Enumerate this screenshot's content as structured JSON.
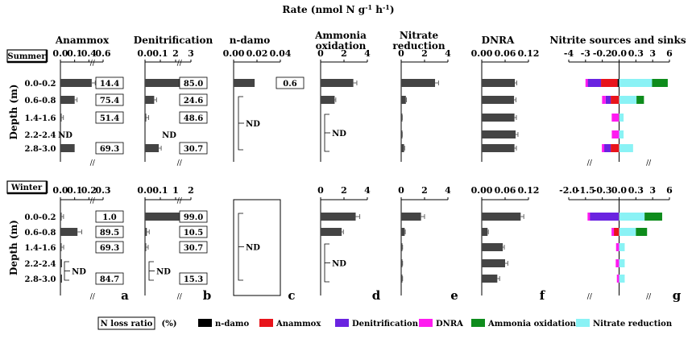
{
  "header": {
    "rate_title": "Rate (nmol N g",
    "rate_exp1": "-1",
    "rate_mid": " h",
    "rate_exp2": "-1",
    "rate_close": ")"
  },
  "seasons": [
    "Summer",
    "Winter"
  ],
  "depth_axis_label": "Depth (m)",
  "depths": [
    "0.0-0.2",
    "0.6-0.8",
    "1.4-1.6",
    "2.2-2.4",
    "2.8-3.0"
  ],
  "nd_label": "ND",
  "panel_letters": [
    "a",
    "b",
    "c",
    "d",
    "e",
    "f",
    "g"
  ],
  "legend": {
    "nloss_box": "N loss ratio",
    "nloss_unit": "(%)",
    "items": [
      {
        "label": "n-damo",
        "color": "#000000"
      },
      {
        "label": "Anammox",
        "color": "#e8141b"
      },
      {
        "label": "Denitrification",
        "color": "#6a23e0"
      },
      {
        "label": "DNRA",
        "color": "#ff1bf0"
      },
      {
        "label": "Ammonia oxidation",
        "color": "#0e8c1c"
      },
      {
        "label": "Nitrate reduction",
        "color": "#8af2f5"
      }
    ]
  },
  "chart_data": [
    {
      "type": "bar",
      "orientation": "horizontal",
      "panel": "a",
      "title": "Anammox",
      "ticks_summer": [
        "0.0",
        "0.1",
        "0.4",
        "0.6"
      ],
      "ticks_winter": [
        "0.0",
        "0.1",
        "0.2",
        "0.3"
      ],
      "series": [
        {
          "name": "Summer",
          "values": [
            0.44,
            0.1,
            0.004,
            null,
            0.1
          ],
          "errors": [
            0.05,
            0.01,
            0.002,
            null,
            0.0
          ],
          "nloss_ratio": [
            "14.4",
            "75.4",
            "51.4",
            null,
            "69.3"
          ]
        },
        {
          "name": "Winter",
          "values": [
            0.005,
            0.12,
            0.006,
            0.0,
            0.0
          ],
          "errors": [
            0.002,
            0.03,
            0.002,
            null,
            null
          ],
          "nloss_ratio": [
            "1.0",
            "89.5",
            "69.3",
            null,
            "84.7"
          ]
        }
      ],
      "nd": {
        "Summer": [
          "2.2-2.4"
        ],
        "Winter": [
          "2.2-2.4",
          "2.8-3.0"
        ]
      }
    },
    {
      "type": "bar",
      "orientation": "horizontal",
      "panel": "b",
      "title": "Denitrification",
      "ticks_summer": [
        "0.0",
        "0.1",
        "2",
        "3"
      ],
      "ticks_winter": [
        "0.0",
        "0.1",
        "1",
        "2"
      ],
      "series": [
        {
          "name": "Summer",
          "values": [
            2.5,
            0.06,
            0.008,
            null,
            0.09
          ],
          "errors": [
            0.0,
            0.005,
            0.002,
            null,
            0.01
          ],
          "nloss_ratio": [
            "85.0",
            "24.6",
            "48.6",
            null,
            "30.7"
          ]
        },
        {
          "name": "Winter",
          "values": [
            1.25,
            0.012,
            0.005,
            null,
            null
          ],
          "errors": [
            0.3,
            0.002,
            0.001,
            null,
            null
          ],
          "nloss_ratio": [
            "99.0",
            "10.5",
            "30.7",
            null,
            "15.3"
          ]
        }
      ],
      "nd": {
        "Summer": [
          "2.2-2.4"
        ],
        "Winter": [
          "2.2-2.4",
          "2.8-3.0"
        ]
      }
    },
    {
      "type": "bar",
      "orientation": "horizontal",
      "panel": "c",
      "title": "n-damo",
      "ticks_summer": [
        "0.00",
        "0.02",
        "0.04"
      ],
      "series": [
        {
          "name": "Summer",
          "values": [
            0.018,
            null,
            null,
            null,
            null
          ],
          "nloss_ratio": [
            "0.6",
            null,
            null,
            null,
            null
          ]
        },
        {
          "name": "Winter",
          "values": [
            null,
            null,
            null,
            null,
            null
          ]
        }
      ],
      "nd": {
        "Summer": [
          "0.6-0.8",
          "1.4-1.6",
          "2.2-2.4",
          "2.8-3.0"
        ],
        "Winter": [
          "0.0-0.2",
          "0.6-0.8",
          "1.4-1.6",
          "2.2-2.4",
          "2.8-3.0"
        ]
      }
    },
    {
      "type": "bar",
      "orientation": "horizontal",
      "panel": "d",
      "title": "Ammonia oxidation",
      "xlim": [
        0,
        4
      ],
      "ticks": [
        "0",
        "2",
        "4"
      ],
      "series": [
        {
          "name": "Summer",
          "values": [
            2.8,
            1.2,
            null,
            null,
            null
          ],
          "errors": [
            0.3,
            0.1,
            null,
            null,
            null
          ]
        },
        {
          "name": "Winter",
          "values": [
            3.0,
            1.8,
            null,
            null,
            null
          ],
          "errors": [
            0.35,
            0.15,
            null,
            null,
            null
          ]
        }
      ],
      "nd": {
        "Summer": [
          "1.4-1.6",
          "2.2-2.4",
          "2.8-3.0"
        ],
        "Winter": [
          "1.4-1.6",
          "2.2-2.4",
          "2.8-3.0"
        ]
      }
    },
    {
      "type": "bar",
      "orientation": "horizontal",
      "panel": "e",
      "title": "Nitrate reduction",
      "xlim": [
        0,
        4
      ],
      "ticks": [
        "0",
        "2",
        "4"
      ],
      "series": [
        {
          "name": "Summer",
          "values": [
            2.9,
            0.4,
            0.08,
            0.08,
            0.25
          ],
          "errors": [
            0.3,
            0.05,
            0.02,
            0.02,
            0.05
          ]
        },
        {
          "name": "Winter",
          "values": [
            1.7,
            0.3,
            0.1,
            0.1,
            0.1
          ],
          "errors": [
            0.3,
            0.05,
            0.02,
            0.02,
            0.02
          ]
        }
      ]
    },
    {
      "type": "bar",
      "orientation": "horizontal",
      "panel": "f",
      "title": "DNRA",
      "xlim": [
        0,
        0.12
      ],
      "ticks": [
        "0.00",
        "0.06",
        "0.12"
      ],
      "series": [
        {
          "name": "Summer",
          "values": [
            0.085,
            0.083,
            0.084,
            0.087,
            0.084
          ],
          "errors": [
            0.005,
            0.005,
            0.005,
            0.006,
            0.005
          ]
        },
        {
          "name": "Winter",
          "values": [
            0.1,
            0.015,
            0.054,
            0.06,
            0.04
          ],
          "errors": [
            0.008,
            0.002,
            0.004,
            0.007,
            0.006
          ]
        }
      ]
    },
    {
      "type": "bar",
      "orientation": "horizontal-stacked",
      "panel": "g",
      "title": "Nitrite sources and sinks",
      "ticks_summer": [
        "-4",
        "-3",
        "-0.2",
        "0.0",
        "0.3",
        "3",
        "6"
      ],
      "ticks_winter": [
        "-2.0",
        "-1.5",
        "-0.3",
        "0.0",
        "0.3",
        "3",
        "6"
      ],
      "series_order": [
        "n-damo",
        "Anammox",
        "Denitrification",
        "DNRA",
        "Ammonia oxidation",
        "Nitrate reduction"
      ],
      "summer": [
        {
          "depth": "0.0-0.2",
          "Denitrification": -2.5,
          "Anammox": -0.4,
          "DNRA": -0.085,
          "n-damo": -0.018,
          "Nitrate reduction": 2.9,
          "Ammonia oxidation": 2.8
        },
        {
          "depth": "0.6-0.8",
          "DNRA": -0.083,
          "Anammox": -0.1,
          "Denitrification": -0.06,
          "Nitrate reduction": 0.4,
          "Ammonia oxidation": 1.2
        },
        {
          "depth": "1.4-1.6",
          "DNRA": -0.084,
          "Anammox": -0.004,
          "Nitrate reduction": 0.08
        },
        {
          "depth": "2.2-2.4",
          "DNRA": -0.087,
          "Nitrate reduction": 0.08
        },
        {
          "depth": "2.8-3.0",
          "DNRA": -0.084,
          "Anammox": -0.1,
          "Denitrification": -0.09,
          "Nitrate reduction": 0.25
        }
      ],
      "winter": [
        {
          "depth": "0.0-0.2",
          "Denitrification": -1.25,
          "DNRA": -0.1,
          "Anammox": -0.005,
          "Nitrate reduction": 1.7,
          "Ammonia oxidation": 3.0
        },
        {
          "depth": "0.6-0.8",
          "Anammox": -0.12,
          "DNRA": -0.015,
          "Nitrate reduction": 0.3,
          "Ammonia oxidation": 1.8
        },
        {
          "depth": "1.4-1.6",
          "DNRA": -0.054,
          "Nitrate reduction": 0.1
        },
        {
          "depth": "2.2-2.4",
          "DNRA": -0.06,
          "Nitrate reduction": 0.1
        },
        {
          "depth": "2.8-3.0",
          "DNRA": -0.04,
          "Nitrate reduction": 0.1
        }
      ]
    }
  ]
}
